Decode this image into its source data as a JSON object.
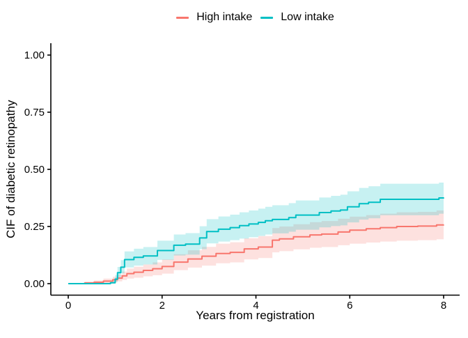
{
  "figure": {
    "background": "#ffffff"
  },
  "legend": {
    "position": "top-center",
    "items": [
      {
        "label": "High intake",
        "color": "#F8766D"
      },
      {
        "label": "Low intake",
        "color": "#00BFC4"
      }
    ]
  },
  "axes": {
    "color": "#000000",
    "tick_label_color": "#000000",
    "x_tick_labels": [
      "0",
      "2",
      "4",
      "6",
      "8"
    ],
    "y_tick_labels": [
      "0.00",
      "0.25",
      "0.50",
      "0.75",
      "1.00"
    ]
  },
  "chart_data": {
    "type": "line",
    "subtype": "step-function-with-confidence-bands",
    "title": "",
    "xlabel": "Years from registration",
    "ylabel": "CIF of diabetic retinopathy",
    "xlim": [
      0,
      8
    ],
    "ylim": [
      0,
      1
    ],
    "x_ticks": [
      0,
      2,
      4,
      6,
      8
    ],
    "y_ticks": [
      0,
      0.25,
      0.5,
      0.75,
      1.0
    ],
    "grid": false,
    "legend_position": "top",
    "band_opacity": 0.22,
    "series": [
      {
        "name": "High intake",
        "color": "#F8766D",
        "points_format": [
          "year",
          "cif",
          "ci_low",
          "ci_high"
        ],
        "points": [
          [
            0.0,
            0.0,
            0.0,
            0.0
          ],
          [
            0.35,
            0.003,
            0.0,
            0.009
          ],
          [
            0.55,
            0.006,
            0.001,
            0.014
          ],
          [
            0.75,
            0.011,
            0.003,
            0.022
          ],
          [
            0.95,
            0.017,
            0.006,
            0.03
          ],
          [
            1.05,
            0.024,
            0.01,
            0.04
          ],
          [
            1.15,
            0.034,
            0.016,
            0.053
          ],
          [
            1.25,
            0.044,
            0.022,
            0.066
          ],
          [
            1.4,
            0.05,
            0.026,
            0.074
          ],
          [
            1.6,
            0.058,
            0.032,
            0.084
          ],
          [
            1.8,
            0.065,
            0.037,
            0.093
          ],
          [
            2.0,
            0.075,
            0.044,
            0.106
          ],
          [
            2.25,
            0.094,
            0.059,
            0.129
          ],
          [
            2.55,
            0.108,
            0.07,
            0.146
          ],
          [
            2.85,
            0.12,
            0.079,
            0.161
          ],
          [
            3.15,
            0.132,
            0.089,
            0.175
          ],
          [
            3.45,
            0.137,
            0.093,
            0.181
          ],
          [
            3.75,
            0.152,
            0.106,
            0.198
          ],
          [
            4.05,
            0.16,
            0.112,
            0.208
          ],
          [
            4.35,
            0.19,
            0.137,
            0.243
          ],
          [
            4.5,
            0.196,
            0.142,
            0.25
          ],
          [
            4.8,
            0.205,
            0.15,
            0.26
          ],
          [
            5.15,
            0.213,
            0.157,
            0.269
          ],
          [
            5.4,
            0.217,
            0.16,
            0.274
          ],
          [
            5.75,
            0.226,
            0.168,
            0.284
          ],
          [
            6.0,
            0.234,
            0.175,
            0.293
          ],
          [
            6.35,
            0.24,
            0.18,
            0.3
          ],
          [
            6.65,
            0.245,
            0.184,
            0.306
          ],
          [
            7.0,
            0.25,
            0.188,
            0.312
          ],
          [
            7.45,
            0.252,
            0.19,
            0.314
          ],
          [
            7.85,
            0.257,
            0.194,
            0.32
          ],
          [
            8.0,
            0.258,
            0.195,
            0.321
          ]
        ]
      },
      {
        "name": "Low intake",
        "color": "#00BFC4",
        "points_format": [
          "year",
          "cif",
          "ci_low",
          "ci_high"
        ],
        "points": [
          [
            0.0,
            0.0,
            0.0,
            0.0
          ],
          [
            0.9,
            0.004,
            0.0,
            0.013
          ],
          [
            1.0,
            0.02,
            0.008,
            0.038
          ],
          [
            1.05,
            0.048,
            0.027,
            0.073
          ],
          [
            1.12,
            0.072,
            0.045,
            0.103
          ],
          [
            1.2,
            0.105,
            0.071,
            0.141
          ],
          [
            1.4,
            0.115,
            0.079,
            0.153
          ],
          [
            1.6,
            0.121,
            0.084,
            0.16
          ],
          [
            1.9,
            0.145,
            0.104,
            0.188
          ],
          [
            2.25,
            0.168,
            0.123,
            0.215
          ],
          [
            2.5,
            0.173,
            0.127,
            0.221
          ],
          [
            2.8,
            0.2,
            0.151,
            0.251
          ],
          [
            2.95,
            0.228,
            0.176,
            0.282
          ],
          [
            3.2,
            0.238,
            0.184,
            0.294
          ],
          [
            3.45,
            0.245,
            0.19,
            0.302
          ],
          [
            3.65,
            0.254,
            0.197,
            0.312
          ],
          [
            3.85,
            0.261,
            0.203,
            0.32
          ],
          [
            4.05,
            0.268,
            0.209,
            0.328
          ],
          [
            4.2,
            0.275,
            0.215,
            0.336
          ],
          [
            4.35,
            0.281,
            0.22,
            0.343
          ],
          [
            4.7,
            0.289,
            0.227,
            0.352
          ],
          [
            4.85,
            0.3,
            0.236,
            0.364
          ],
          [
            5.35,
            0.311,
            0.246,
            0.377
          ],
          [
            5.6,
            0.318,
            0.252,
            0.384
          ],
          [
            5.8,
            0.322,
            0.255,
            0.389
          ],
          [
            5.95,
            0.336,
            0.268,
            0.404
          ],
          [
            6.2,
            0.35,
            0.28,
            0.419
          ],
          [
            6.4,
            0.356,
            0.286,
            0.426
          ],
          [
            6.65,
            0.369,
            0.299,
            0.437
          ],
          [
            7.9,
            0.375,
            0.306,
            0.442
          ],
          [
            8.0,
            0.377,
            0.308,
            0.444
          ]
        ]
      }
    ]
  }
}
